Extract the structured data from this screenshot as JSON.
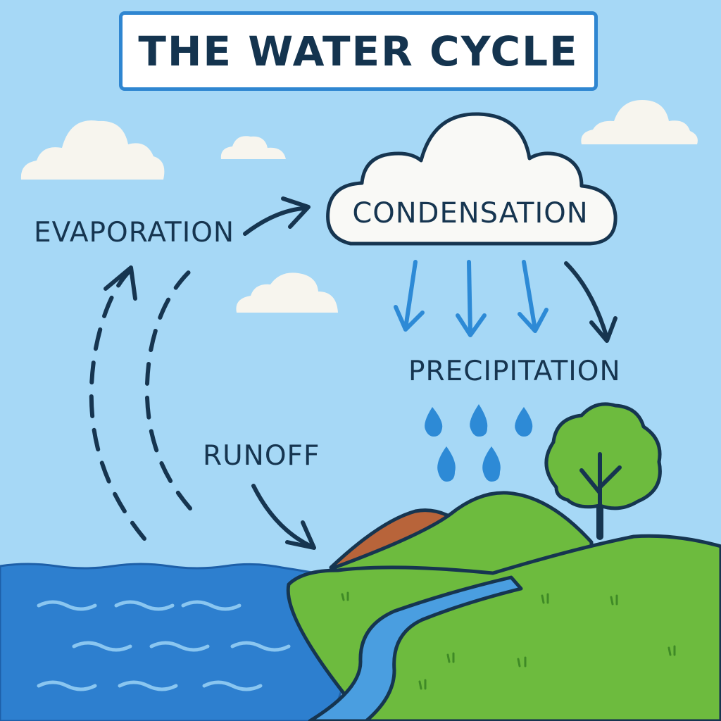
{
  "title": "THE WATER CYCLE",
  "labels": {
    "evaporation": "EVAPORATION",
    "condensation": "CONDENSATION",
    "precipitation": "PRECIPITATION",
    "runoff": "RUNOFF"
  },
  "colors": {
    "sky": "#a6d8f6",
    "ocean": "#2d7fcf",
    "wave": "#8ac6f0",
    "hill": "#6dbb3e",
    "dirt": "#b8643a",
    "river": "#4a9ee0",
    "raindrop": "#2d8ad6",
    "outline": "#163550",
    "title_border": "#2f86d1"
  }
}
